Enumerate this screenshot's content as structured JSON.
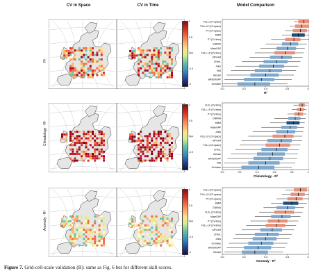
{
  "column_titles": [
    "CV in Space",
    "CV in Time",
    "Model Comparison"
  ],
  "rows": [
    {
      "label": "R²",
      "colorbar_ticks": [
        "1",
        "",
        "0.5",
        "",
        "0",
        "",
        "-0.5",
        "",
        "-1"
      ],
      "colorbar_unit": "R²",
      "comparison": {
        "xlabel": "R²",
        "xticks": [
          "0.0",
          "0.2",
          "0.4",
          "0.6",
          "0.8"
        ],
        "models": [
          {
            "name": "FULL (CV-space)",
            "median": 0.75,
            "q1": 0.7,
            "q3": 0.82,
            "lo": 0.66,
            "hi": 0.86,
            "color": "salmon"
          },
          {
            "name": "FULL-LP (CV-space)",
            "median": 0.73,
            "q1": 0.67,
            "q3": 0.8,
            "lo": 0.62,
            "hi": 0.85,
            "color": "salmon"
          },
          {
            "name": "PT (CV-space)",
            "median": 0.72,
            "q1": 0.65,
            "q3": 0.78,
            "lo": 0.58,
            "hi": 0.84,
            "color": "salmon"
          },
          {
            "name": "MMM",
            "median": 0.7,
            "q1": 0.64,
            "q3": 0.76,
            "lo": 0.55,
            "hi": 0.82,
            "color": "navy"
          },
          {
            "name": "PT (CV-time)",
            "median": 0.66,
            "q1": 0.58,
            "q3": 0.72,
            "lo": 0.45,
            "hi": 0.8,
            "color": "salmon"
          },
          {
            "name": "GNMVA",
            "median": 0.63,
            "q1": 0.55,
            "q3": 0.7,
            "lo": 0.4,
            "hi": 0.78,
            "color": "steel"
          },
          {
            "name": "MaxeGAP",
            "median": 0.6,
            "q1": 0.5,
            "q3": 0.68,
            "lo": 0.35,
            "hi": 0.76,
            "color": "steel"
          },
          {
            "name": "FULL-LP (CV-time)",
            "median": 0.58,
            "q1": 0.48,
            "q3": 0.67,
            "lo": 0.3,
            "hi": 0.75,
            "color": "salmon"
          },
          {
            "name": "MPI-HM",
            "median": 0.55,
            "q1": 0.44,
            "q3": 0.64,
            "lo": 0.25,
            "hi": 0.74,
            "color": "steel"
          },
          {
            "name": "LPJmL",
            "median": 0.5,
            "q1": 0.38,
            "q3": 0.6,
            "lo": 0.18,
            "hi": 0.72,
            "color": "steel"
          },
          {
            "name": "Jules",
            "median": 0.47,
            "q1": 0.34,
            "q3": 0.57,
            "lo": 0.12,
            "hi": 0.7,
            "color": "steel"
          },
          {
            "name": "H08",
            "median": 0.44,
            "q1": 0.3,
            "q3": 0.55,
            "lo": 0.08,
            "hi": 0.68,
            "color": "steel"
          },
          {
            "name": "Htessel",
            "median": 0.4,
            "q1": 0.26,
            "q3": 0.52,
            "lo": 0.04,
            "hi": 0.66,
            "color": "steel"
          },
          {
            "name": "WATERGAP",
            "median": 0.36,
            "q1": 0.2,
            "q3": 0.48,
            "lo": 0.02,
            "hi": 0.64,
            "color": "steel"
          },
          {
            "name": "Orchidee",
            "median": 0.3,
            "q1": 0.14,
            "q3": 0.44,
            "lo": 0.0,
            "hi": 0.6,
            "color": "steel"
          }
        ]
      }
    },
    {
      "label": "Climatology - R²",
      "colorbar_ticks": [
        "1",
        "",
        "0.5",
        "",
        "0",
        "",
        "-0.5",
        "",
        "-1"
      ],
      "colorbar_unit": "R²",
      "comparison": {
        "xlabel": "Climatology - R²",
        "xticks": [
          "0.0",
          "0.2",
          "0.4",
          "0.6",
          "0.8",
          "1.0"
        ],
        "models": [
          {
            "name": "FULL (CV-time)",
            "median": 0.92,
            "q1": 0.88,
            "q3": 0.95,
            "lo": 0.82,
            "hi": 0.98,
            "color": "salmon"
          },
          {
            "name": "FULL-LP (CV-time)",
            "median": 0.9,
            "q1": 0.86,
            "q3": 0.94,
            "lo": 0.8,
            "hi": 0.97,
            "color": "salmon"
          },
          {
            "name": "PT (CV-time)",
            "median": 0.88,
            "q1": 0.83,
            "q3": 0.93,
            "lo": 0.75,
            "hi": 0.97,
            "color": "salmon"
          },
          {
            "name": "GNMVA",
            "median": 0.84,
            "q1": 0.76,
            "q3": 0.9,
            "lo": 0.6,
            "hi": 0.96,
            "color": "steel"
          },
          {
            "name": "MMM",
            "median": 0.82,
            "q1": 0.74,
            "q3": 0.89,
            "lo": 0.55,
            "hi": 0.95,
            "color": "navy"
          },
          {
            "name": "MaxeGAP",
            "median": 0.78,
            "q1": 0.68,
            "q3": 0.86,
            "lo": 0.45,
            "hi": 0.94,
            "color": "steel"
          },
          {
            "name": "Jules",
            "median": 0.75,
            "q1": 0.62,
            "q3": 0.84,
            "lo": 0.35,
            "hi": 0.93,
            "color": "steel"
          },
          {
            "name": "FULL-LP (CV-space)",
            "median": 0.72,
            "q1": 0.58,
            "q3": 0.82,
            "lo": 0.3,
            "hi": 0.92,
            "color": "salmon"
          },
          {
            "name": "MPI-HM",
            "median": 0.68,
            "q1": 0.52,
            "q3": 0.8,
            "lo": 0.22,
            "hi": 0.92,
            "color": "steel"
          },
          {
            "name": "FULL (CV-space)",
            "median": 0.66,
            "q1": 0.5,
            "q3": 0.78,
            "lo": 0.2,
            "hi": 0.9,
            "color": "salmon"
          },
          {
            "name": "LPJmL",
            "median": 0.62,
            "q1": 0.45,
            "q3": 0.75,
            "lo": 0.15,
            "hi": 0.88,
            "color": "steel"
          },
          {
            "name": "Htessel",
            "median": 0.58,
            "q1": 0.4,
            "q3": 0.72,
            "lo": 0.1,
            "hi": 0.87,
            "color": "steel"
          },
          {
            "name": "WATERGAP",
            "median": 0.55,
            "q1": 0.36,
            "q3": 0.7,
            "lo": 0.06,
            "hi": 0.86,
            "color": "steel"
          },
          {
            "name": "H08",
            "median": 0.5,
            "q1": 0.3,
            "q3": 0.66,
            "lo": 0.02,
            "hi": 0.84,
            "color": "steel"
          },
          {
            "name": "Orchidee",
            "median": 0.42,
            "q1": 0.22,
            "q3": 0.6,
            "lo": 0.0,
            "hi": 0.8,
            "color": "steel"
          }
        ]
      }
    },
    {
      "label": "Anomaly - R²",
      "colorbar_ticks": [
        "1",
        "",
        "0.5",
        "",
        "0",
        "",
        "-0.5",
        "",
        "-1"
      ],
      "colorbar_unit": "R²",
      "comparison": {
        "xlabel": "Anomaly - R²",
        "xticks": [
          "0.0",
          "0.2",
          "0.4",
          "0.6",
          "0.8"
        ],
        "models": [
          {
            "name": "FULL (CV-space)",
            "median": 0.72,
            "q1": 0.66,
            "q3": 0.78,
            "lo": 0.58,
            "hi": 0.84,
            "color": "salmon"
          },
          {
            "name": "FULL-LP (CV-space)",
            "median": 0.7,
            "q1": 0.63,
            "q3": 0.76,
            "lo": 0.55,
            "hi": 0.82,
            "color": "salmon"
          },
          {
            "name": "PT (CV-space)",
            "median": 0.68,
            "q1": 0.6,
            "q3": 0.74,
            "lo": 0.5,
            "hi": 0.8,
            "color": "salmon"
          },
          {
            "name": "MMM",
            "median": 0.64,
            "q1": 0.56,
            "q3": 0.7,
            "lo": 0.45,
            "hi": 0.78,
            "color": "navy"
          },
          {
            "name": "GNMVA",
            "median": 0.6,
            "q1": 0.5,
            "q3": 0.67,
            "lo": 0.38,
            "hi": 0.75,
            "color": "steel"
          },
          {
            "name": "FULL (CV-time)",
            "median": 0.58,
            "q1": 0.48,
            "q3": 0.66,
            "lo": 0.34,
            "hi": 0.74,
            "color": "salmon"
          },
          {
            "name": "MaxeGAP",
            "median": 0.55,
            "q1": 0.45,
            "q3": 0.63,
            "lo": 0.3,
            "hi": 0.72,
            "color": "steel"
          },
          {
            "name": "PT (CV-time)",
            "median": 0.52,
            "q1": 0.42,
            "q3": 0.6,
            "lo": 0.26,
            "hi": 0.7,
            "color": "salmon"
          },
          {
            "name": "FULL-LP (CV-time)",
            "median": 0.5,
            "q1": 0.4,
            "q3": 0.58,
            "lo": 0.22,
            "hi": 0.68,
            "color": "salmon"
          },
          {
            "name": "MPI-HM",
            "median": 0.46,
            "q1": 0.35,
            "q3": 0.55,
            "lo": 0.18,
            "hi": 0.66,
            "color": "steel"
          },
          {
            "name": "LPJmL",
            "median": 0.42,
            "q1": 0.3,
            "q3": 0.52,
            "lo": 0.12,
            "hi": 0.64,
            "color": "steel"
          },
          {
            "name": "Jules",
            "median": 0.4,
            "q1": 0.28,
            "q3": 0.5,
            "lo": 0.1,
            "hi": 0.62,
            "color": "steel"
          },
          {
            "name": "Orchidee",
            "median": 0.36,
            "q1": 0.24,
            "q3": 0.47,
            "lo": 0.06,
            "hi": 0.6,
            "color": "steel"
          },
          {
            "name": "WATERGAP",
            "median": 0.33,
            "q1": 0.2,
            "q3": 0.45,
            "lo": 0.04,
            "hi": 0.58,
            "color": "steel"
          },
          {
            "name": "Htessel",
            "median": 0.3,
            "q1": 0.18,
            "q3": 0.42,
            "lo": 0.02,
            "hi": 0.56,
            "color": "steel"
          }
        ]
      }
    }
  ],
  "colors": {
    "salmon": "#e8917a",
    "steel": "#7fa8cc",
    "navy": "#1f4e79",
    "land": "#e6e6e6",
    "sea": "#ffffff"
  },
  "caption": {
    "label": "Figure 7.",
    "text": " Grid-cell-scale validation (B): same as Fig. 6 but for different skill scores."
  },
  "chart_data": [
    {
      "type": "bar",
      "title": "Model Comparison",
      "xlabel": "R²",
      "xlim": [
        0,
        0.9
      ],
      "categories": [
        "FULL (CV-space)",
        "FULL-LP (CV-space)",
        "PT (CV-space)",
        "MMM",
        "PT (CV-time)",
        "GNMVA",
        "MaxeGAP",
        "FULL-LP (CV-time)",
        "MPI-HM",
        "LPJmL",
        "Jules",
        "H08",
        "Htessel",
        "WATERGAP",
        "Orchidee"
      ],
      "values": [
        0.75,
        0.73,
        0.72,
        0.7,
        0.66,
        0.63,
        0.6,
        0.58,
        0.55,
        0.5,
        0.47,
        0.44,
        0.4,
        0.36,
        0.3
      ]
    },
    {
      "type": "bar",
      "title": "",
      "xlabel": "Climatology - R²",
      "xlim": [
        0,
        1.0
      ],
      "categories": [
        "FULL (CV-time)",
        "FULL-LP (CV-time)",
        "PT (CV-time)",
        "GNMVA",
        "MMM",
        "MaxeGAP",
        "Jules",
        "FULL-LP (CV-space)",
        "MPI-HM",
        "FULL (CV-space)",
        "LPJmL",
        "Htessel",
        "WATERGAP",
        "H08",
        "Orchidee"
      ],
      "values": [
        0.92,
        0.9,
        0.88,
        0.84,
        0.82,
        0.78,
        0.75,
        0.72,
        0.68,
        0.66,
        0.62,
        0.58,
        0.55,
        0.5,
        0.42
      ]
    },
    {
      "type": "bar",
      "title": "",
      "xlabel": "Anomaly - R²",
      "xlim": [
        0,
        0.9
      ],
      "categories": [
        "FULL (CV-space)",
        "FULL-LP (CV-space)",
        "PT (CV-space)",
        "MMM",
        "GNMVA",
        "FULL (CV-time)",
        "MaxeGAP",
        "PT (CV-time)",
        "FULL-LP (CV-time)",
        "MPI-HM",
        "LPJmL",
        "Jules",
        "Orchidee",
        "WATERGAP",
        "Htessel"
      ],
      "values": [
        0.72,
        0.7,
        0.68,
        0.64,
        0.6,
        0.58,
        0.55,
        0.52,
        0.5,
        0.46,
        0.42,
        0.4,
        0.36,
        0.33,
        0.3
      ]
    }
  ]
}
